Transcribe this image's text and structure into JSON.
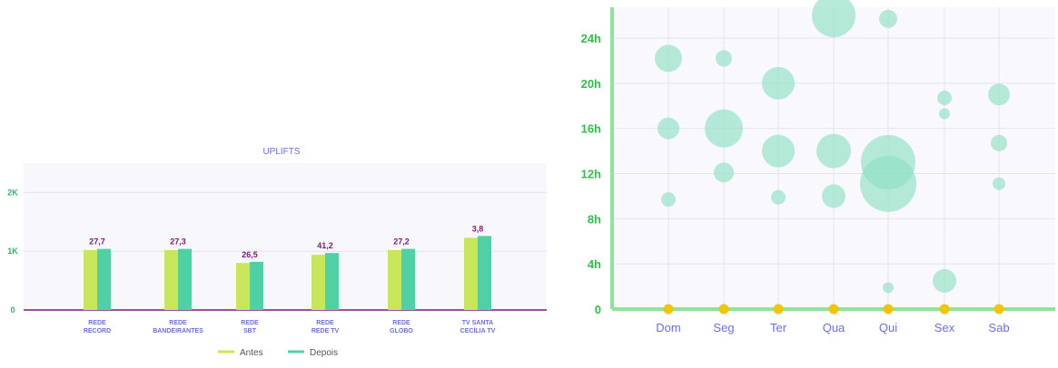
{
  "chart_data": [
    {
      "type": "bar",
      "title": "UPLIFTS",
      "categories": [
        [
          "REDE",
          "RECORD"
        ],
        [
          "REDE",
          "BANDEIRANTES"
        ],
        [
          "REDE",
          "SBT"
        ],
        [
          "REDE",
          "REDE TV"
        ],
        [
          "REDE",
          "GLOBO"
        ],
        [
          "TV SANTA",
          "CECÍLIA TV"
        ]
      ],
      "series": [
        {
          "name": "Antes",
          "values": [
            1020,
            1020,
            800,
            940,
            1020,
            1230
          ],
          "color": "#c8e65a"
        },
        {
          "name": "Depois",
          "values": [
            1040,
            1040,
            820,
            970,
            1040,
            1260
          ],
          "color": "#4fd1a5"
        }
      ],
      "data_labels": [
        "27,7",
        "27,3",
        "26,5",
        "41,2",
        "27,2",
        "3,8"
      ],
      "yticks": [
        {
          "value": 0,
          "label": "0"
        },
        {
          "value": 1000,
          "label": "1K"
        },
        {
          "value": 2000,
          "label": "2K"
        }
      ],
      "ylim": [
        0,
        2500
      ],
      "legend": "bottom",
      "grid": true
    },
    {
      "type": "scatter",
      "categories": [
        "Dom",
        "Seg",
        "Ter",
        "Qua",
        "Qui",
        "Sex",
        "Sab"
      ],
      "yticks": [
        {
          "value": 0,
          "label": "0"
        },
        {
          "value": 4,
          "label": "4h"
        },
        {
          "value": 8,
          "label": "8h"
        },
        {
          "value": 12,
          "label": "12h"
        },
        {
          "value": 16,
          "label": "16h"
        },
        {
          "value": 20,
          "label": "20h"
        },
        {
          "value": 24,
          "label": "24h"
        }
      ],
      "ylim": [
        0,
        27
      ],
      "bubble_color": "#8fe0c4",
      "baseline_marker_color": "#f5c400",
      "bubbles": [
        {
          "x": "Dom",
          "y": 22.2,
          "size": 15
        },
        {
          "x": "Dom",
          "y": 16.0,
          "size": 12
        },
        {
          "x": "Dom",
          "y": 9.7,
          "size": 8
        },
        {
          "x": "Seg",
          "y": 22.2,
          "size": 9
        },
        {
          "x": "Seg",
          "y": 16.0,
          "size": 21
        },
        {
          "x": "Seg",
          "y": 12.1,
          "size": 11
        },
        {
          "x": "Ter",
          "y": 20.0,
          "size": 18
        },
        {
          "x": "Ter",
          "y": 14.0,
          "size": 18
        },
        {
          "x": "Ter",
          "y": 9.9,
          "size": 8
        },
        {
          "x": "Qua",
          "y": 26.0,
          "size": 24
        },
        {
          "x": "Qua",
          "y": 14.0,
          "size": 19
        },
        {
          "x": "Qua",
          "y": 10.0,
          "size": 13
        },
        {
          "x": "Qui",
          "y": 25.7,
          "size": 10
        },
        {
          "x": "Qui",
          "y": 13.0,
          "size": 30
        },
        {
          "x": "Qui",
          "y": 11.1,
          "size": 31
        },
        {
          "x": "Qui",
          "y": 1.9,
          "size": 6
        },
        {
          "x": "Sex",
          "y": 18.7,
          "size": 8
        },
        {
          "x": "Sex",
          "y": 17.3,
          "size": 6
        },
        {
          "x": "Sex",
          "y": 2.5,
          "size": 13
        },
        {
          "x": "Sab",
          "y": 19.0,
          "size": 12
        },
        {
          "x": "Sab",
          "y": 14.7,
          "size": 9
        },
        {
          "x": "Sab",
          "y": 11.1,
          "size": 7
        }
      ],
      "grid": true
    }
  ]
}
